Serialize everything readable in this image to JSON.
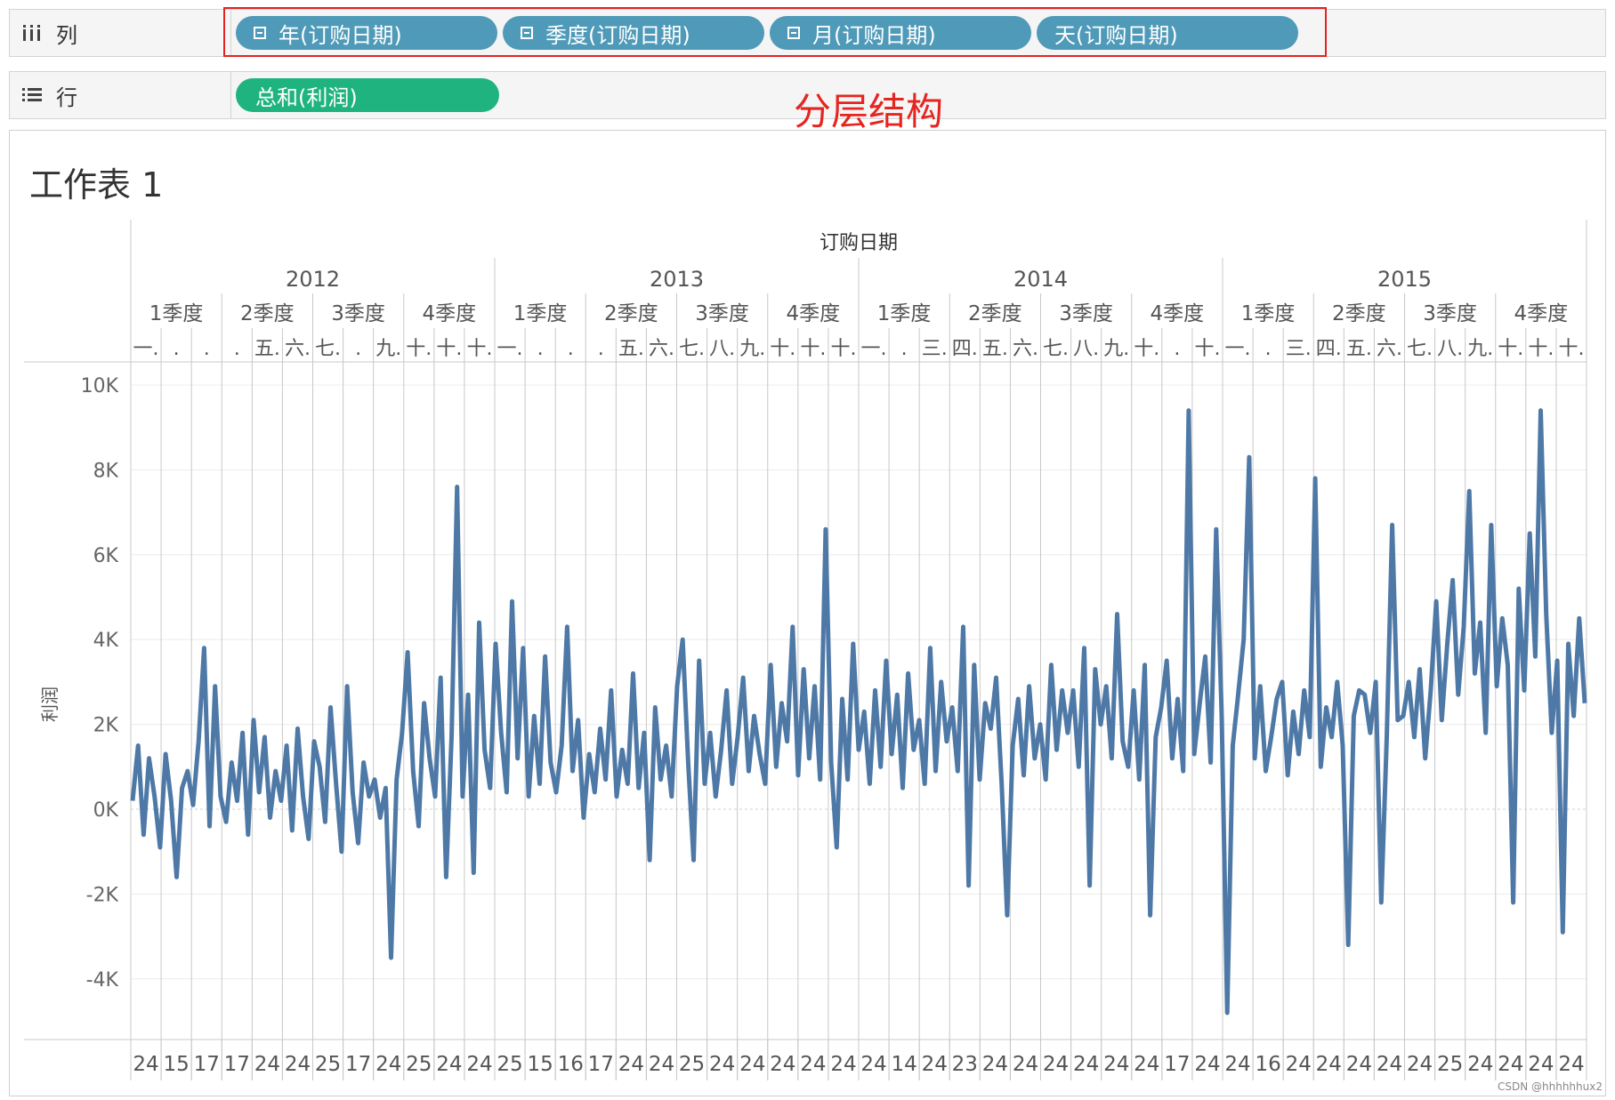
{
  "columns_shelf": {
    "label": "列",
    "pills": [
      "年(订购日期)",
      "季度(订购日期)",
      "月(订购日期)",
      "天(订购日期)"
    ]
  },
  "rows_shelf": {
    "label": "行",
    "pills": [
      "总和(利润)"
    ]
  },
  "annotation": "分层结构",
  "worksheet": {
    "title": "工作表 1"
  },
  "watermark": "CSDN @hhhhhhux2",
  "colors": {
    "pill_blue": "#4f9ab8",
    "pill_green": "#1fb47f",
    "line": "#4e79a7",
    "annotation_red": "#e52520"
  },
  "chart_data": {
    "type": "line",
    "title": "",
    "header_title": "订购日期",
    "ylabel": "利润",
    "ylim": [
      -5000,
      10500
    ],
    "yticks": [
      10000,
      8000,
      6000,
      4000,
      2000,
      0,
      -2000,
      -4000
    ],
    "ytick_labels": [
      "10K",
      "8K",
      "6K",
      "4K",
      "2K",
      "0K",
      "-2K",
      "-4K"
    ],
    "years": [
      "2012",
      "2013",
      "2014",
      "2015"
    ],
    "quarters": [
      "1季度",
      "2季度",
      "3季度",
      "4季度"
    ],
    "month_labels": [
      "一.",
      ".",
      ".",
      ".",
      "五.",
      "六.",
      "七.",
      ".",
      "九.",
      "十.",
      "十.",
      "十.",
      "一.",
      ".",
      ".",
      ".",
      "五.",
      "六.",
      "七.",
      "八.",
      "九.",
      "十.",
      "十.",
      "十.",
      "一.",
      ".",
      "三.",
      "四.",
      "五.",
      "六.",
      "七.",
      "八.",
      "九.",
      "十.",
      ".",
      "十.",
      "一.",
      ".",
      "三.",
      "四.",
      "五.",
      "六.",
      "七.",
      "八.",
      "九.",
      "十.",
      "十.",
      "十."
    ],
    "day_labels": [
      "24",
      "15",
      "17",
      "17",
      "24",
      "24",
      "25",
      "17",
      "24",
      "25",
      "24",
      "24",
      "25",
      "15",
      "16",
      "17",
      "24",
      "24",
      "25",
      "24",
      "24",
      "24",
      "24",
      "24",
      "24",
      "14",
      "24",
      "23",
      "24",
      "24",
      "24",
      "24",
      "24",
      "24",
      "17",
      "24",
      "24",
      "16",
      "24",
      "24",
      "24",
      "24",
      "24",
      "25",
      "24",
      "24",
      "24",
      "24"
    ],
    "series": [
      {
        "values": [
          200,
          1500,
          -600,
          1200,
          300,
          -900,
          1300,
          200,
          -1600,
          500,
          900,
          100,
          1600,
          3800,
          -400,
          2900,
          300,
          -300,
          1100,
          200,
          1800,
          -600,
          2100,
          400,
          1700,
          -200,
          900,
          200,
          1500,
          -500,
          1900,
          300,
          -700,
          1600,
          1000,
          -300,
          2400,
          600,
          -1000,
          2900,
          400,
          -800,
          1100,
          300,
          700,
          -200,
          500,
          -3500,
          700,
          1800,
          3700,
          900,
          -400,
          2500,
          1200,
          300,
          3100,
          -1600,
          1700,
          7600,
          300,
          2700,
          -1500,
          4400,
          1400,
          500,
          3900,
          1800,
          400,
          4900,
          1200,
          3800,
          300,
          2200,
          600,
          3600,
          1100,
          400,
          1500,
          4300,
          900,
          2100,
          -200,
          1300,
          400,
          1900,
          700,
          2800,
          300,
          1400,
          600,
          3200,
          500,
          1800,
          -1200,
          2400,
          700,
          1500,
          300,
          2900,
          4000,
          1100,
          -1200,
          3500,
          600,
          1800,
          300,
          1400,
          2800,
          600,
          1700,
          3100,
          900,
          2200,
          1300,
          600,
          3400,
          1000,
          2500,
          1600,
          4300,
          800,
          3300,
          1200,
          2900,
          700,
          6600,
          1100,
          -900,
          2600,
          700,
          3900,
          1400,
          2300,
          600,
          2800,
          1000,
          3500,
          1300,
          2700,
          500,
          3200,
          1400,
          2100,
          600,
          3800,
          900,
          3000,
          1600,
          2400,
          900,
          4300,
          -1800,
          3400,
          700,
          2500,
          1900,
          3100,
          600,
          -2500,
          1500,
          2600,
          800,
          2900,
          1200,
          2000,
          700,
          3400,
          1400,
          2800,
          1800,
          2800,
          1000,
          3800,
          -1800,
          3300,
          2000,
          2900,
          1200,
          4600,
          1600,
          1000,
          2800,
          700,
          3400,
          -2500,
          1700,
          2400,
          3500,
          1200,
          2600,
          900,
          9400,
          1300,
          2500,
          3600,
          1100,
          6600,
          2200,
          -4800,
          1500,
          2700,
          4000,
          8300,
          1200,
          2900,
          900,
          1700,
          2600,
          3000,
          800,
          2300,
          1300,
          2800,
          1700,
          7800,
          1000,
          2400,
          1700,
          3000,
          1500,
          -3200,
          2200,
          2800,
          2700,
          1800,
          3000,
          -2200,
          1700,
          6700,
          2100,
          2200,
          3000,
          1700,
          3300,
          1200,
          2800,
          4900,
          2100,
          3900,
          5400,
          2700,
          4300,
          7500,
          3200,
          4400,
          1800,
          6700,
          2900,
          4500,
          3400,
          -2200,
          5200,
          2800,
          6500,
          3600,
          9400,
          4600,
          1800,
          3500,
          -2900,
          3900,
          2200,
          4500,
          2500
        ]
      }
    ]
  }
}
